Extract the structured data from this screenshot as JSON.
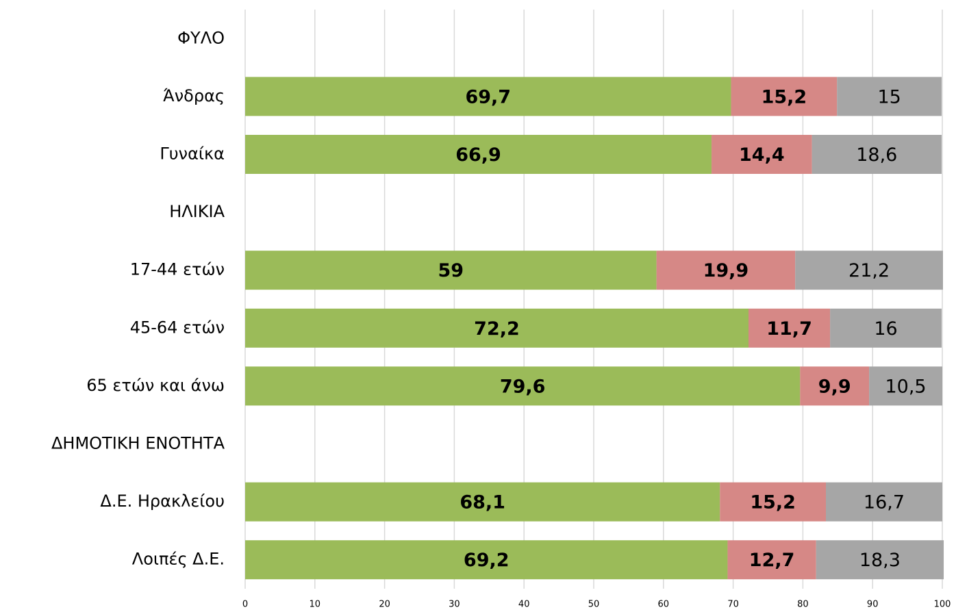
{
  "chart_data": {
    "type": "stacked_barh",
    "categories": [
      "ΦΥΛΟ",
      "Άνδρας",
      "Γυναίκα",
      "ΗΛΙΚΙΑ",
      "17-44 ετών",
      "45-64 ετών",
      "65 ετών και άνω",
      "ΔΗΜΟΤΙΚΗ ΕΝΟΤΗΤΑ",
      "Δ.Ε. Ηρακλείου",
      "Λοιπές Δ.Ε."
    ],
    "series": [
      {
        "color": "#9bbb59",
        "values": [
          null,
          69.7,
          66.9,
          null,
          59,
          72.2,
          79.6,
          null,
          68.1,
          69.2
        ],
        "value_labels": [
          null,
          "69,7",
          "66,9",
          null,
          "59",
          "72,2",
          "79,6",
          null,
          "68,1",
          "69,2"
        ]
      },
      {
        "color": "#d68886",
        "values": [
          null,
          15.2,
          14.4,
          null,
          19.9,
          11.7,
          9.9,
          null,
          15.2,
          12.7
        ],
        "value_labels": [
          null,
          "15,2",
          "14,4",
          null,
          "19,9",
          "11,7",
          "9,9",
          null,
          "15,2",
          "12,7"
        ]
      },
      {
        "color": "#a6a6a6",
        "values": [
          null,
          15,
          18.6,
          null,
          21.2,
          16,
          10.5,
          null,
          16.7,
          18.3
        ],
        "value_labels": [
          null,
          "15",
          "18,6",
          null,
          "21,2",
          "16",
          "10,5",
          null,
          "16,7",
          "18,3"
        ]
      }
    ],
    "xlim": [
      0,
      100
    ],
    "xticks": [
      0,
      10,
      20,
      30,
      40,
      50,
      60,
      70,
      80,
      90,
      100
    ],
    "grid": true
  }
}
